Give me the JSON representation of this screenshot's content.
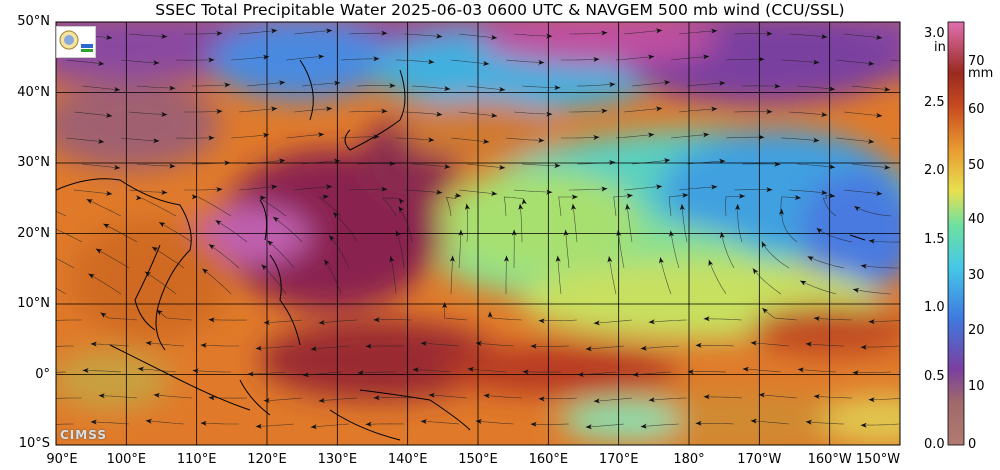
{
  "title": "SSEC Total Precipitable Water  2025-06-03 0600 UTC & NAVGEM 500 mb wind (CCU/SSL)",
  "map": {
    "lat_labels": [
      "50°N",
      "40°N",
      "30°N",
      "20°N",
      "10°N",
      "0°",
      "10°S"
    ],
    "lon_labels": [
      "90°E",
      "100°E",
      "110°E",
      "120°E",
      "130°E",
      "140°E",
      "150°E",
      "160°E",
      "170°E",
      "180°",
      "170°W",
      "160°W",
      "150°W"
    ],
    "extent": {
      "lon_min": 90,
      "lon_max": 210,
      "lat_min": -10,
      "lat_max": 50
    }
  },
  "colorbar": {
    "inch_labels": [
      "3.0",
      "in",
      "2.5",
      "2.0",
      "1.5",
      "1.0",
      "0.5",
      "0.0"
    ],
    "mm_labels": [
      "70",
      "mm",
      "60",
      "50",
      "40",
      "30",
      "20",
      "10",
      "0"
    ],
    "colors": [
      "#b27a72",
      "#7a3fa0",
      "#3f8ae0",
      "#4fe0c8",
      "#e8e050",
      "#e07a20",
      "#9a2a20",
      "#e05aa0"
    ]
  },
  "logos": {
    "cimss": "CIMSS"
  },
  "icons": {
    "ssec_logo": "globe-seal-icon"
  }
}
